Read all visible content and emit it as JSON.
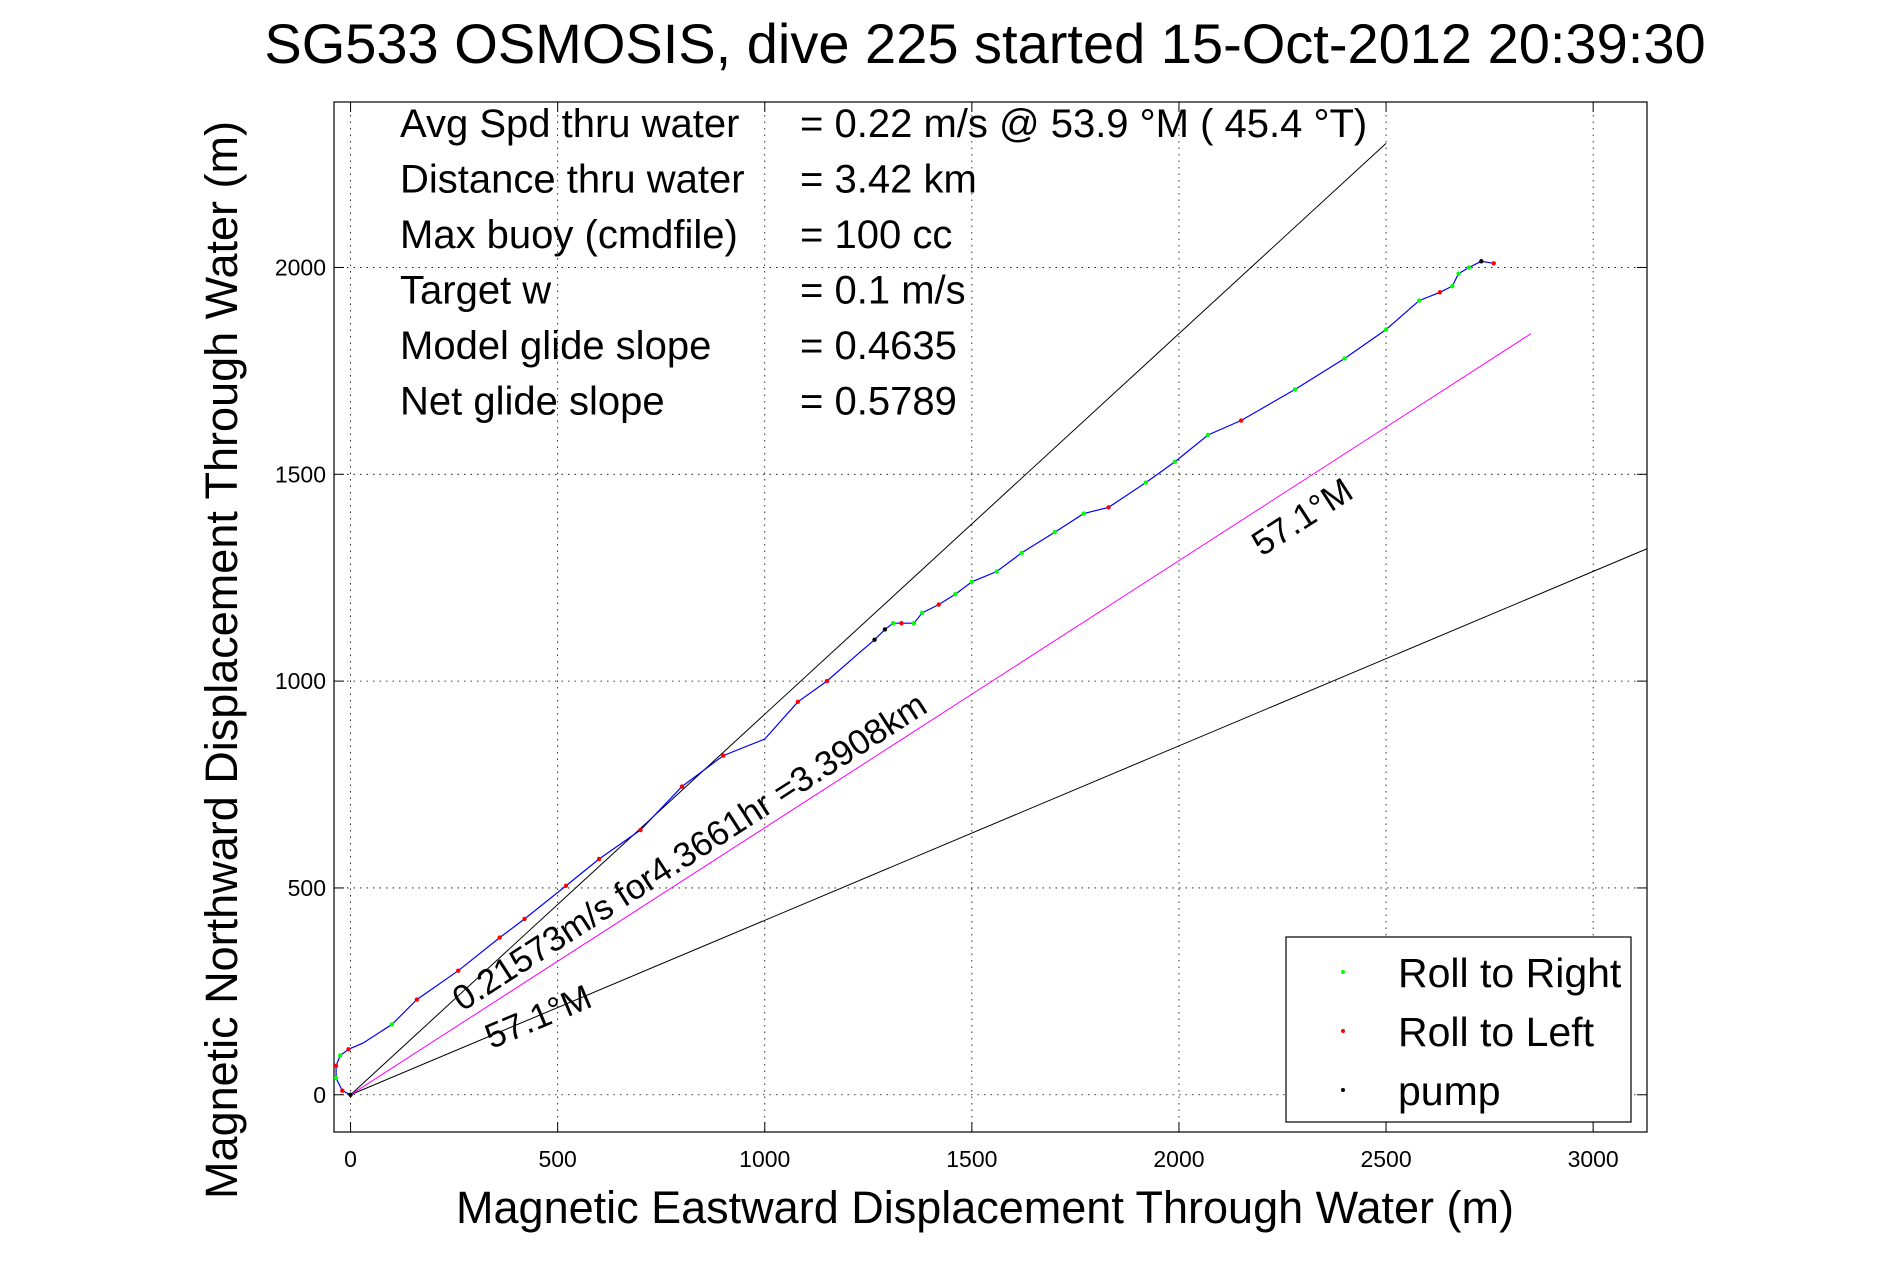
{
  "chart_data": {
    "type": "scatter",
    "title": "SG533 OSMOSIS, dive 225 started 15-Oct-2012 20:39:30",
    "xlabel": "Magnetic Eastward Displacement Through Water (m)",
    "ylabel": "Magnetic Northward Displacement Through Water (m)",
    "xlim": [
      -40,
      3130
    ],
    "ylim": [
      -90,
      2400
    ],
    "xticks": [
      0,
      500,
      1000,
      1500,
      2000,
      2500,
      3000
    ],
    "yticks": [
      0,
      500,
      1000,
      1500,
      2000
    ],
    "grid": true,
    "info": [
      {
        "label": "Avg Spd thru water",
        "value": "=  0.22 m/s @  53.9 °M ( 45.4 °T)"
      },
      {
        "label": "Distance thru water",
        "value": "=  3.42 km"
      },
      {
        "label": "Max buoy (cmdfile)",
        "value": "= 100 cc"
      },
      {
        "label": "Target w",
        "value": "= 0.1 m/s"
      },
      {
        "label": "Model glide slope",
        "value": "= 0.4635"
      },
      {
        "label": "Net glide slope",
        "value": "= 0.5789"
      }
    ],
    "annotations": {
      "speed": "0.21573m/s for4.3661hr =3.3908km",
      "heading_bottom": "57.1°M",
      "heading_upper": "57.1°M"
    },
    "reference_lines": [
      {
        "x": [
          0,
          2500
        ],
        "y": [
          0,
          2300
        ]
      },
      {
        "x": [
          0,
          3130
        ],
        "y": [
          0,
          1320
        ]
      }
    ],
    "heading_line": {
      "x": [
        0,
        2850
      ],
      "y": [
        0,
        1840
      ]
    },
    "track": {
      "x": [
        0,
        -20,
        -35,
        -35,
        -25,
        -5,
        30,
        100,
        160,
        260,
        360,
        420,
        520,
        600,
        700,
        800,
        900,
        1000,
        1080,
        1150,
        1230,
        1265,
        1290,
        1310,
        1330,
        1360,
        1380,
        1420,
        1460,
        1500,
        1560,
        1620,
        1700,
        1770,
        1830,
        1920,
        1990,
        2070,
        2150,
        2280,
        2400,
        2500,
        2580,
        2630,
        2660,
        2675,
        2700,
        2730,
        2760
      ],
      "y": [
        0,
        10,
        40,
        70,
        95,
        110,
        125,
        170,
        230,
        300,
        380,
        425,
        505,
        570,
        640,
        745,
        820,
        860,
        950,
        1000,
        1070,
        1100,
        1125,
        1140,
        1140,
        1140,
        1165,
        1185,
        1210,
        1240,
        1265,
        1310,
        1360,
        1405,
        1420,
        1480,
        1530,
        1595,
        1630,
        1705,
        1780,
        1850,
        1920,
        1940,
        1955,
        1985,
        2000,
        2015,
        2010
      ]
    },
    "legend": {
      "position": "bottom-right",
      "entries": [
        {
          "name": "Roll to Right",
          "color": "#00ff00"
        },
        {
          "name": "Roll to Left",
          "color": "#ff0000"
        },
        {
          "name": "pump",
          "color": "#000000"
        }
      ]
    },
    "colors": {
      "track": "#0000ff",
      "heading_line": "#ff00ff",
      "reference": "#000000"
    }
  }
}
